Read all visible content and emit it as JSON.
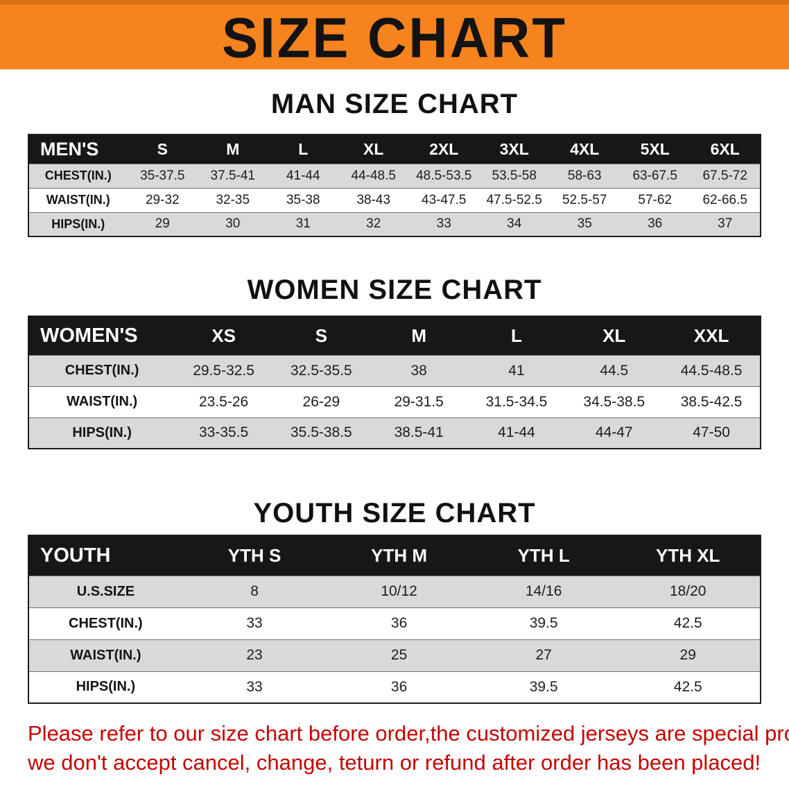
{
  "banner": {
    "title": "SIZE CHART"
  },
  "colors": {
    "banner_bg": "#F6831E",
    "banner_edge": "#DD7014",
    "header_bg": "#171717",
    "row_alt": "#D9D9D9",
    "disclaimer_red": "#C40404"
  },
  "men": {
    "heading": "MAN SIZE CHART",
    "table": {
      "header": [
        "MEN'S",
        "S",
        "M",
        "L",
        "XL",
        "2XL",
        "3XL",
        "4XL",
        "5XL",
        "6XL"
      ],
      "rows": [
        [
          "CHEST(IN.)",
          "35-37.5",
          "37.5-41",
          "41-44",
          "44-48.5",
          "48.5-53.5",
          "53.5-58",
          "58-63",
          "63-67.5",
          "67.5-72"
        ],
        [
          "WAIST(IN.)",
          "29-32",
          "32-35",
          "35-38",
          "38-43",
          "43-47.5",
          "47.5-52.5",
          "52.5-57",
          "57-62",
          "62-66.5"
        ],
        [
          "HIPS(IN.)",
          "29",
          "30",
          "31",
          "32",
          "33",
          "34",
          "35",
          "36",
          "37"
        ]
      ]
    }
  },
  "women": {
    "heading": "WOMEN SIZE CHART",
    "table": {
      "header": [
        "WOMEN'S",
        "XS",
        "S",
        "M",
        "L",
        "XL",
        "XXL"
      ],
      "rows": [
        [
          "CHEST(IN.)",
          "29.5-32.5",
          "32.5-35.5",
          "38",
          "41",
          "44.5",
          "44.5-48.5"
        ],
        [
          "WAIST(IN.)",
          "23.5-26",
          "26-29",
          "29-31.5",
          "31.5-34.5",
          "34.5-38.5",
          "38.5-42.5"
        ],
        [
          "HIPS(IN.)",
          "33-35.5",
          "35.5-38.5",
          "38.5-41",
          "41-44",
          "44-47",
          "47-50"
        ]
      ]
    }
  },
  "youth": {
    "heading": "YOUTH SIZE CHART",
    "table": {
      "header": [
        "YOUTH",
        "YTH S",
        "YTH M",
        "YTH L",
        "YTH XL"
      ],
      "rows": [
        [
          "U.S.SIZE",
          "8",
          "10/12",
          "14/16",
          "18/20"
        ],
        [
          "CHEST(IN.)",
          "33",
          "36",
          "39.5",
          "42.5"
        ],
        [
          "WAIST(IN.)",
          "23",
          "25",
          "27",
          "29"
        ],
        [
          "HIPS(IN.)",
          "33",
          "36",
          "39.5",
          "42.5"
        ]
      ]
    }
  },
  "disclaimer": {
    "line1": "Please refer to our size chart before order,the customized jerseys are special products,",
    "line2": "we don't accept cancel, change, teturn or refund after order has been placed!"
  }
}
